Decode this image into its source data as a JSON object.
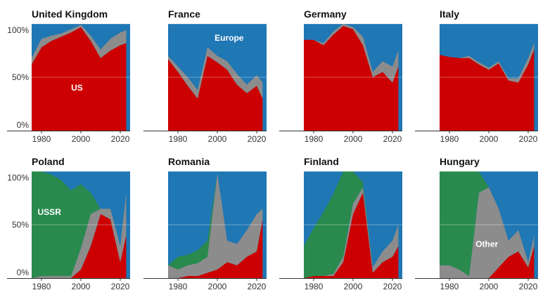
{
  "chart_data": {
    "type": "area",
    "stacked_percent": true,
    "years": [
      1975,
      1980,
      1985,
      1990,
      1995,
      2000,
      2005,
      2010,
      2015,
      2020,
      2023
    ],
    "xlim": [
      1975,
      2025
    ],
    "x_ticks": [
      "1980",
      "2000",
      "2020"
    ],
    "ylim": [
      0,
      100
    ],
    "y_tick_labels": [
      "100%",
      "50%",
      "0%"
    ],
    "series_colors": {
      "us": "#cc0000",
      "other": "#8c8c8c",
      "europe": "#1f77b4",
      "ussr": "#2a8a4e"
    },
    "panels": [
      {
        "title": "United Kingdom",
        "show_y_ticks": true,
        "annotations": [
          {
            "text": "US",
            "year": 1998,
            "pct": 40
          }
        ],
        "series": [
          {
            "key": "us",
            "values": [
              62,
              78,
              84,
              88,
              92,
              97,
              84,
              68,
              75,
              80,
              82
            ]
          },
          {
            "key": "other",
            "values": [
              6,
              8,
              5,
              3,
              3,
              2,
              5,
              8,
              11,
              12,
              12
            ]
          }
        ]
      },
      {
        "title": "France",
        "show_y_ticks": false,
        "annotations": [
          {
            "text": "Europe",
            "year": 2006,
            "pct": 87
          }
        ],
        "series": [
          {
            "key": "us",
            "values": [
              67,
              55,
              42,
              30,
              70,
              64,
              57,
              43,
              35,
              42,
              30
            ]
          },
          {
            "key": "other",
            "values": [
              3,
              5,
              8,
              8,
              8,
              6,
              8,
              10,
              8,
              10,
              15
            ]
          }
        ]
      },
      {
        "title": "Germany",
        "show_y_ticks": false,
        "annotations": [],
        "series": [
          {
            "key": "us",
            "values": [
              85,
              85,
              80,
              90,
              98,
              95,
              80,
              50,
              55,
              45,
              60
            ]
          },
          {
            "key": "other",
            "values": [
              0,
              0,
              2,
              3,
              2,
              2,
              8,
              5,
              10,
              15,
              15
            ]
          }
        ]
      },
      {
        "title": "Italy",
        "show_y_ticks": false,
        "annotations": [],
        "series": [
          {
            "key": "us",
            "values": [
              71,
              69,
              68,
              68,
              62,
              57,
              63,
              47,
              45,
              62,
              76
            ]
          },
          {
            "key": "other",
            "values": [
              0,
              0,
              0,
              2,
              2,
              2,
              2,
              2,
              4,
              6,
              6
            ]
          }
        ]
      },
      {
        "title": "Poland",
        "show_y_ticks": true,
        "annotations": [
          {
            "text": "USSR",
            "year": 1984,
            "pct": 62
          }
        ],
        "series": [
          {
            "key": "us",
            "values": [
              0,
              0,
              0,
              0,
              0,
              8,
              30,
              60,
              55,
              15,
              40
            ]
          },
          {
            "key": "other",
            "values": [
              0,
              2,
              2,
              2,
              2,
              20,
              30,
              5,
              10,
              15,
              40
            ]
          },
          {
            "key": "ussr",
            "values": [
              100,
              98,
              95,
              90,
              80,
              60,
              20,
              0,
              0,
              0,
              0
            ]
          }
        ]
      },
      {
        "title": "Romania",
        "show_y_ticks": false,
        "annotations": [],
        "series": [
          {
            "key": "us",
            "values": [
              0,
              0,
              2,
              2,
              5,
              8,
              15,
              12,
              20,
              25,
              55
            ]
          },
          {
            "key": "other",
            "values": [
              12,
              8,
              10,
              12,
              15,
              90,
              20,
              20,
              25,
              35,
              10
            ]
          },
          {
            "key": "ussr",
            "values": [
              0,
              12,
              10,
              12,
              15,
              0,
              0,
              0,
              0,
              0,
              0
            ]
          }
        ]
      },
      {
        "title": "Finland",
        "show_y_ticks": false,
        "annotations": [],
        "series": [
          {
            "key": "us",
            "values": [
              0,
              2,
              2,
              2,
              15,
              60,
              80,
              5,
              15,
              20,
              30
            ]
          },
          {
            "key": "other",
            "values": [
              0,
              0,
              0,
              2,
              5,
              10,
              5,
              5,
              10,
              15,
              20
            ]
          },
          {
            "key": "ussr",
            "values": [
              30,
              45,
              60,
              75,
              80,
              30,
              5,
              0,
              0,
              0,
              0
            ]
          }
        ]
      },
      {
        "title": "Hungary",
        "show_y_ticks": false,
        "annotations": [
          {
            "text": "Other",
            "year": 1999,
            "pct": 32
          }
        ],
        "series": [
          {
            "key": "us",
            "values": [
              0,
              0,
              0,
              0,
              0,
              0,
              10,
              20,
              25,
              10,
              30
            ]
          },
          {
            "key": "other",
            "values": [
              12,
              12,
              8,
              2,
              80,
              85,
              55,
              15,
              20,
              5,
              10
            ]
          },
          {
            "key": "ussr",
            "values": [
              88,
              88,
              92,
              98,
              20,
              0,
              0,
              0,
              0,
              0,
              0
            ]
          }
        ]
      }
    ]
  }
}
